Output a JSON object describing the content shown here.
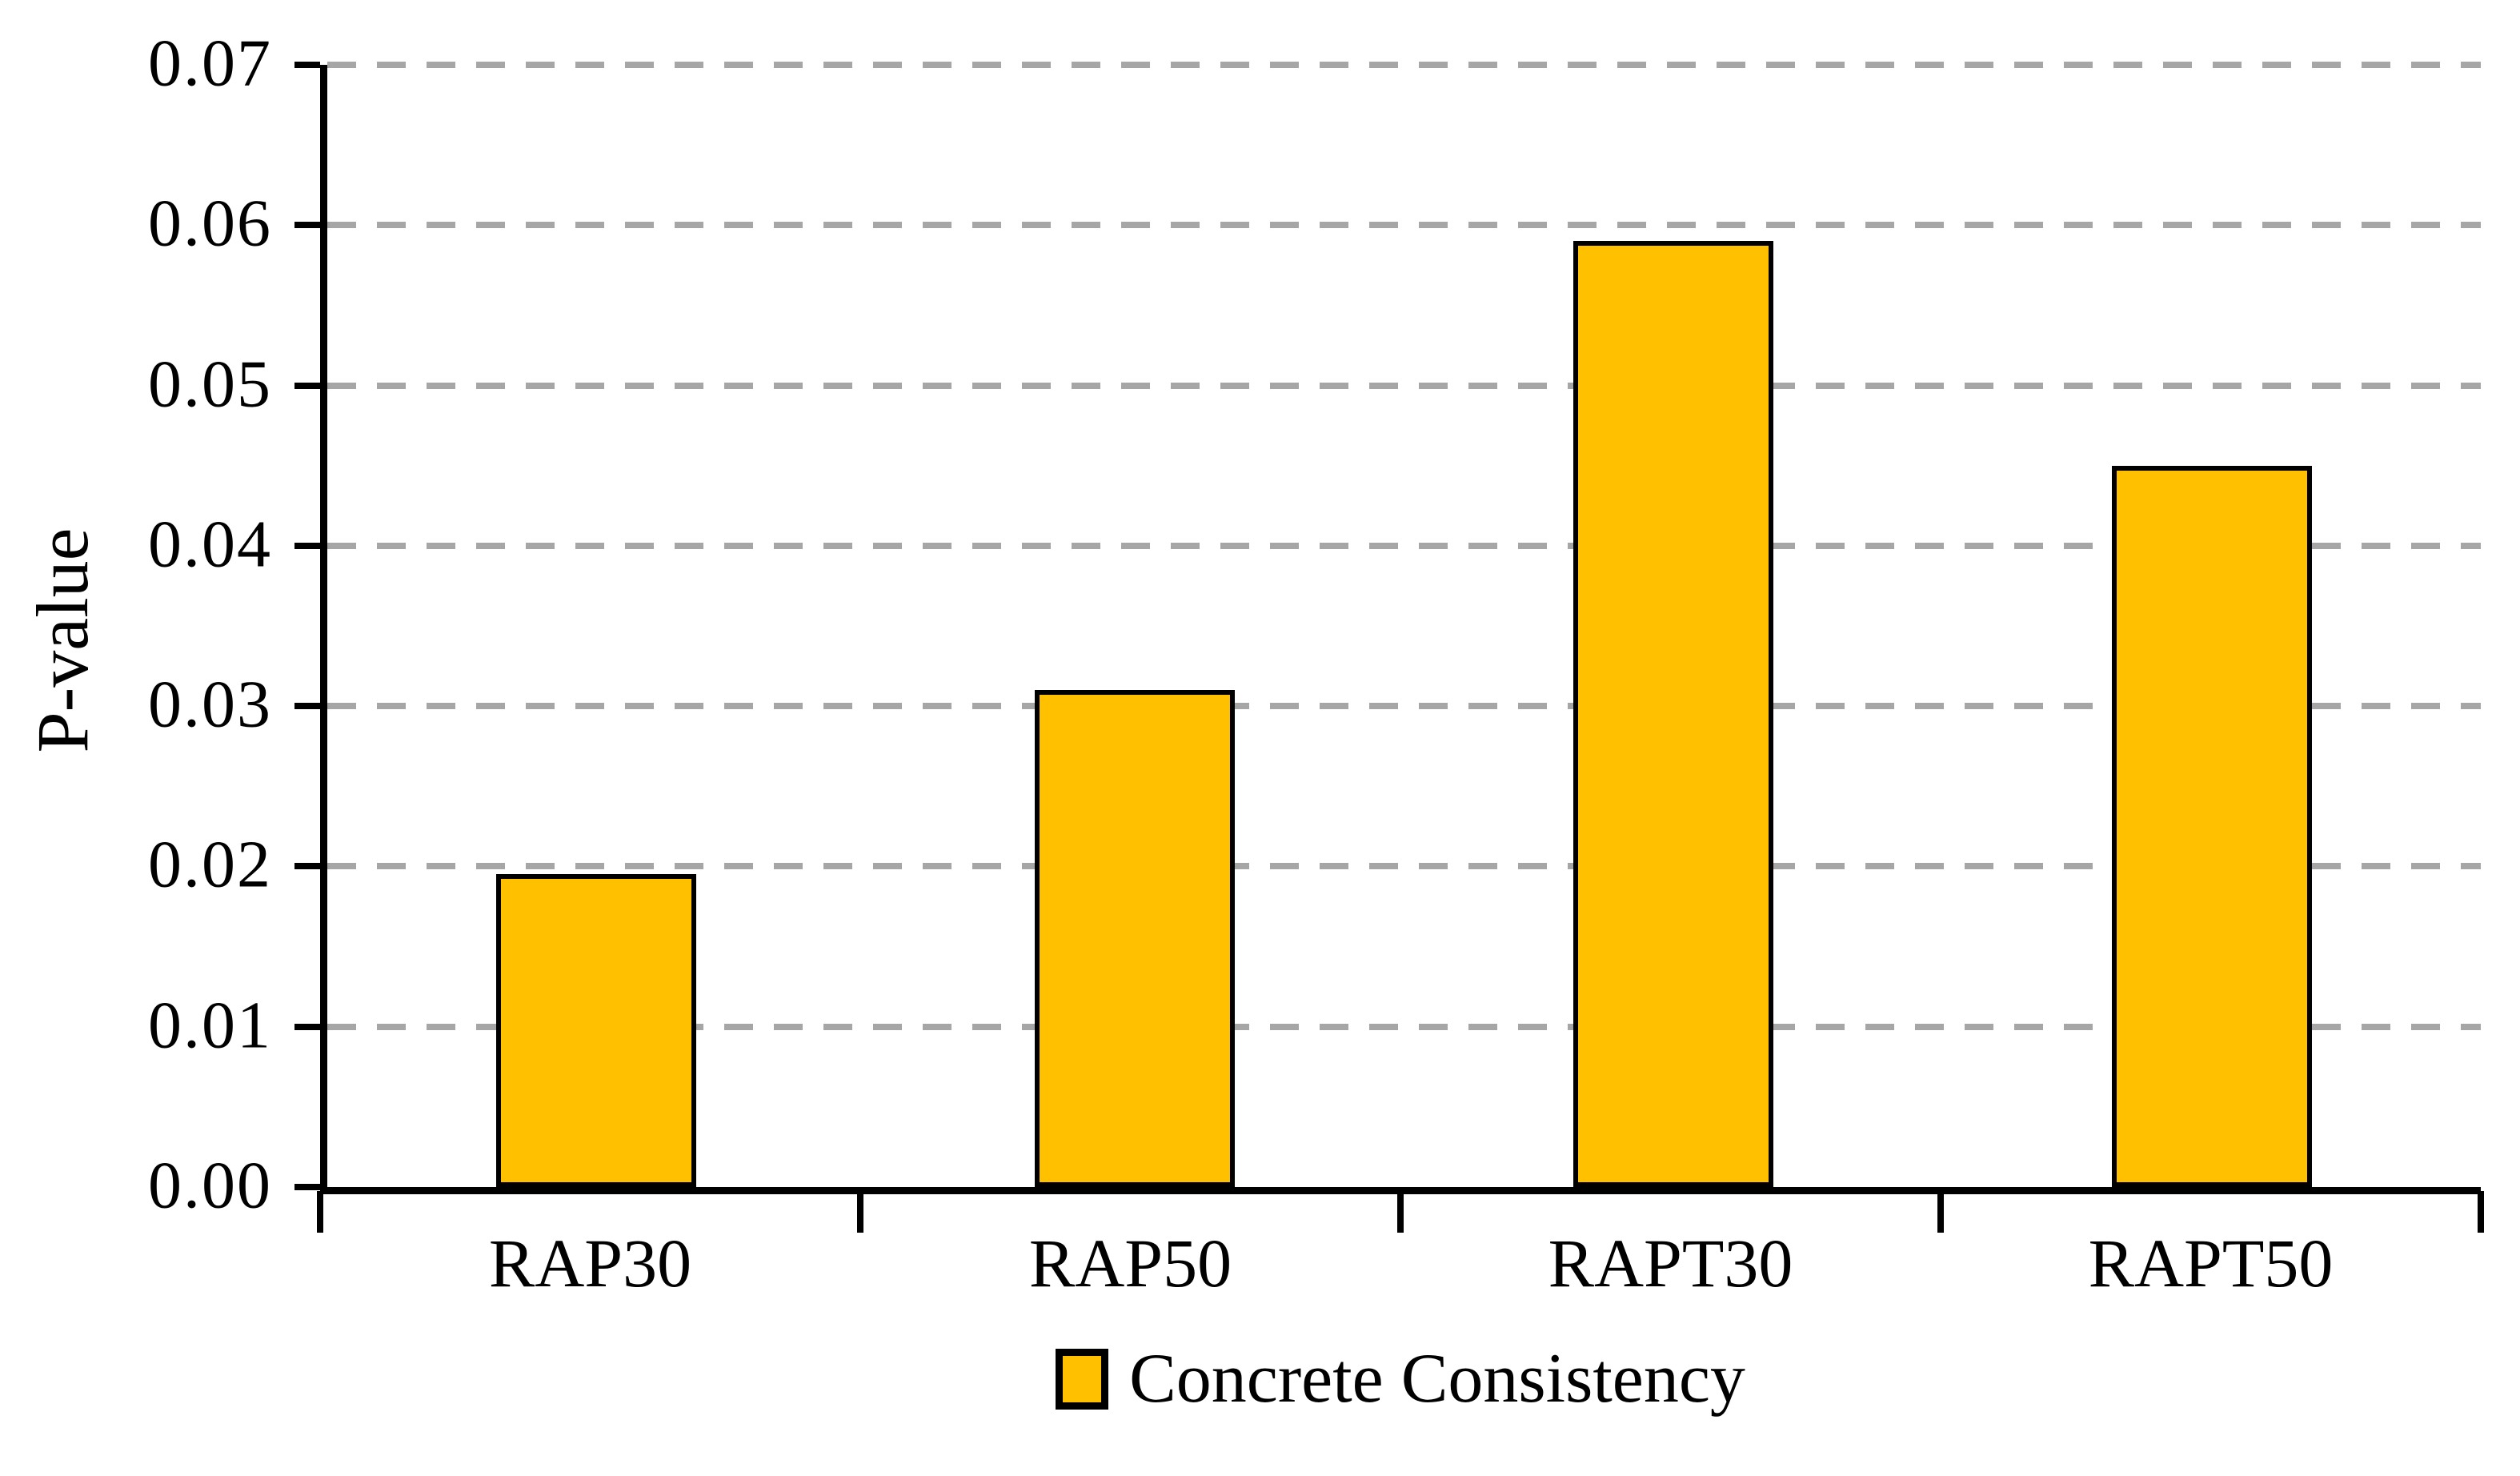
{
  "chart_data": {
    "type": "bar",
    "title": "",
    "categories": [
      "RAP30",
      "RAP50",
      "RAPT30",
      "RAPT50"
    ],
    "series": [
      {
        "name": "Concrete Consistency",
        "values": [
          0.0195,
          0.031,
          0.059,
          0.045
        ]
      }
    ],
    "xlabel": "",
    "ylabel": "P-value",
    "ylim": [
      0,
      0.07
    ],
    "ytick_values": [
      0,
      0.01,
      0.02,
      0.03,
      0.04,
      0.05,
      0.06,
      0.07
    ],
    "ytick_labels": [
      "0.00",
      "0.01",
      "0.02",
      "0.03",
      "0.04",
      "0.05",
      "0.06",
      "0.07"
    ],
    "grid": "horizontal-dashed",
    "legend_position": "bottom-center",
    "colors": {
      "bar_fill": "#FFC000",
      "bar_border": "#000000",
      "gridline": "#A6A6A6",
      "axis": "#000000",
      "text": "#000000",
      "background": "#FFFFFF"
    }
  }
}
